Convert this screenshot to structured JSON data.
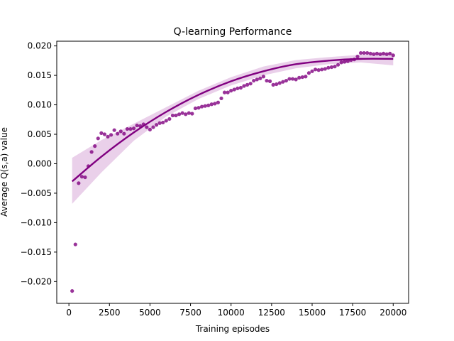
{
  "chart_data": {
    "type": "scatter",
    "title": "Q-learning Performance",
    "xlabel": "Training episodes",
    "ylabel": "Average Q(s,a) value",
    "xlim": [
      -750,
      20950
    ],
    "ylim": [
      -0.0237,
      0.0208
    ],
    "xticks": [
      0,
      2500,
      5000,
      7500,
      10000,
      12500,
      15000,
      17500,
      20000
    ],
    "xtick_labels": [
      "0",
      "2500",
      "5000",
      "7500",
      "10000",
      "12500",
      "15000",
      "17500",
      "20000"
    ],
    "yticks": [
      -0.02,
      -0.015,
      -0.01,
      -0.005,
      0.0,
      0.005,
      0.01,
      0.015,
      0.02
    ],
    "ytick_labels": [
      "−0.020",
      "−0.015",
      "−0.010",
      "−0.005",
      "0.000",
      "0.005",
      "0.010",
      "0.015",
      "0.020"
    ],
    "grid": false,
    "colors": {
      "points": "#800080",
      "fit": "#800080",
      "band": "#e6c8e6"
    },
    "series": [
      {
        "kind": "scatter",
        "x": [
          200,
          400,
          600,
          800,
          1000,
          1200,
          1400,
          1600,
          1800,
          2000,
          2200,
          2400,
          2600,
          2800,
          3000,
          3200,
          3400,
          3600,
          3800,
          4000,
          4200,
          4400,
          4600,
          4800,
          5000,
          5200,
          5400,
          5600,
          5800,
          6000,
          6200,
          6400,
          6600,
          6800,
          7000,
          7200,
          7400,
          7600,
          7800,
          8000,
          8200,
          8400,
          8600,
          8800,
          9000,
          9200,
          9400,
          9600,
          9800,
          10000,
          10200,
          10400,
          10600,
          10800,
          11000,
          11200,
          11400,
          11600,
          11800,
          12000,
          12200,
          12400,
          12600,
          12800,
          13000,
          13200,
          13400,
          13600,
          13800,
          14000,
          14200,
          14400,
          14600,
          14800,
          15000,
          15200,
          15400,
          15600,
          15800,
          16000,
          16200,
          16400,
          16600,
          16800,
          17000,
          17200,
          17400,
          17600,
          17800,
          18000,
          18200,
          18400,
          18600,
          18800,
          19000,
          19200,
          19400,
          19600,
          19800,
          20000
        ],
        "y": [
          -0.0216,
          -0.0137,
          -0.0033,
          -0.0022,
          -0.0023,
          -0.0004,
          0.002,
          0.003,
          0.0043,
          0.0052,
          0.005,
          0.0046,
          0.0049,
          0.0057,
          0.0051,
          0.0055,
          0.0051,
          0.0059,
          0.0059,
          0.006,
          0.0065,
          0.0064,
          0.0067,
          0.0062,
          0.0058,
          0.0062,
          0.0066,
          0.0069,
          0.007,
          0.0073,
          0.0076,
          0.0082,
          0.0082,
          0.0084,
          0.0086,
          0.0084,
          0.0086,
          0.0085,
          0.0094,
          0.0095,
          0.0097,
          0.0098,
          0.0099,
          0.0101,
          0.0102,
          0.0104,
          0.0111,
          0.0121,
          0.0121,
          0.0124,
          0.0126,
          0.0128,
          0.0129,
          0.0132,
          0.0134,
          0.0136,
          0.0141,
          0.0143,
          0.0145,
          0.0148,
          0.0141,
          0.014,
          0.0134,
          0.0135,
          0.0137,
          0.0139,
          0.0141,
          0.0144,
          0.0144,
          0.0143,
          0.0146,
          0.0147,
          0.0148,
          0.0154,
          0.0157,
          0.016,
          0.0159,
          0.016,
          0.0161,
          0.0163,
          0.0164,
          0.0165,
          0.0168,
          0.0172,
          0.0173,
          0.0174,
          0.0176,
          0.0177,
          0.0182,
          0.0188,
          0.0188,
          0.0188,
          0.0187,
          0.0186,
          0.0187,
          0.0186,
          0.0187,
          0.0186,
          0.0187,
          0.0184
        ]
      },
      {
        "kind": "fit-line",
        "x": [
          200,
          2000,
          4000,
          6000,
          8000,
          10000,
          12000,
          14000,
          16000,
          18000,
          20000
        ],
        "y": [
          -0.003,
          0.0012,
          0.0053,
          0.0088,
          0.0117,
          0.014,
          0.0157,
          0.0169,
          0.0175,
          0.0178,
          0.0178
        ],
        "band_upper": [
          0.001,
          0.004,
          0.0068,
          0.0096,
          0.0124,
          0.0147,
          0.0165,
          0.0176,
          0.0181,
          0.0185,
          0.0188
        ],
        "band_lower": [
          -0.0068,
          -0.0015,
          0.0039,
          0.008,
          0.011,
          0.0133,
          0.015,
          0.0162,
          0.0169,
          0.0172,
          0.0167
        ]
      }
    ]
  }
}
